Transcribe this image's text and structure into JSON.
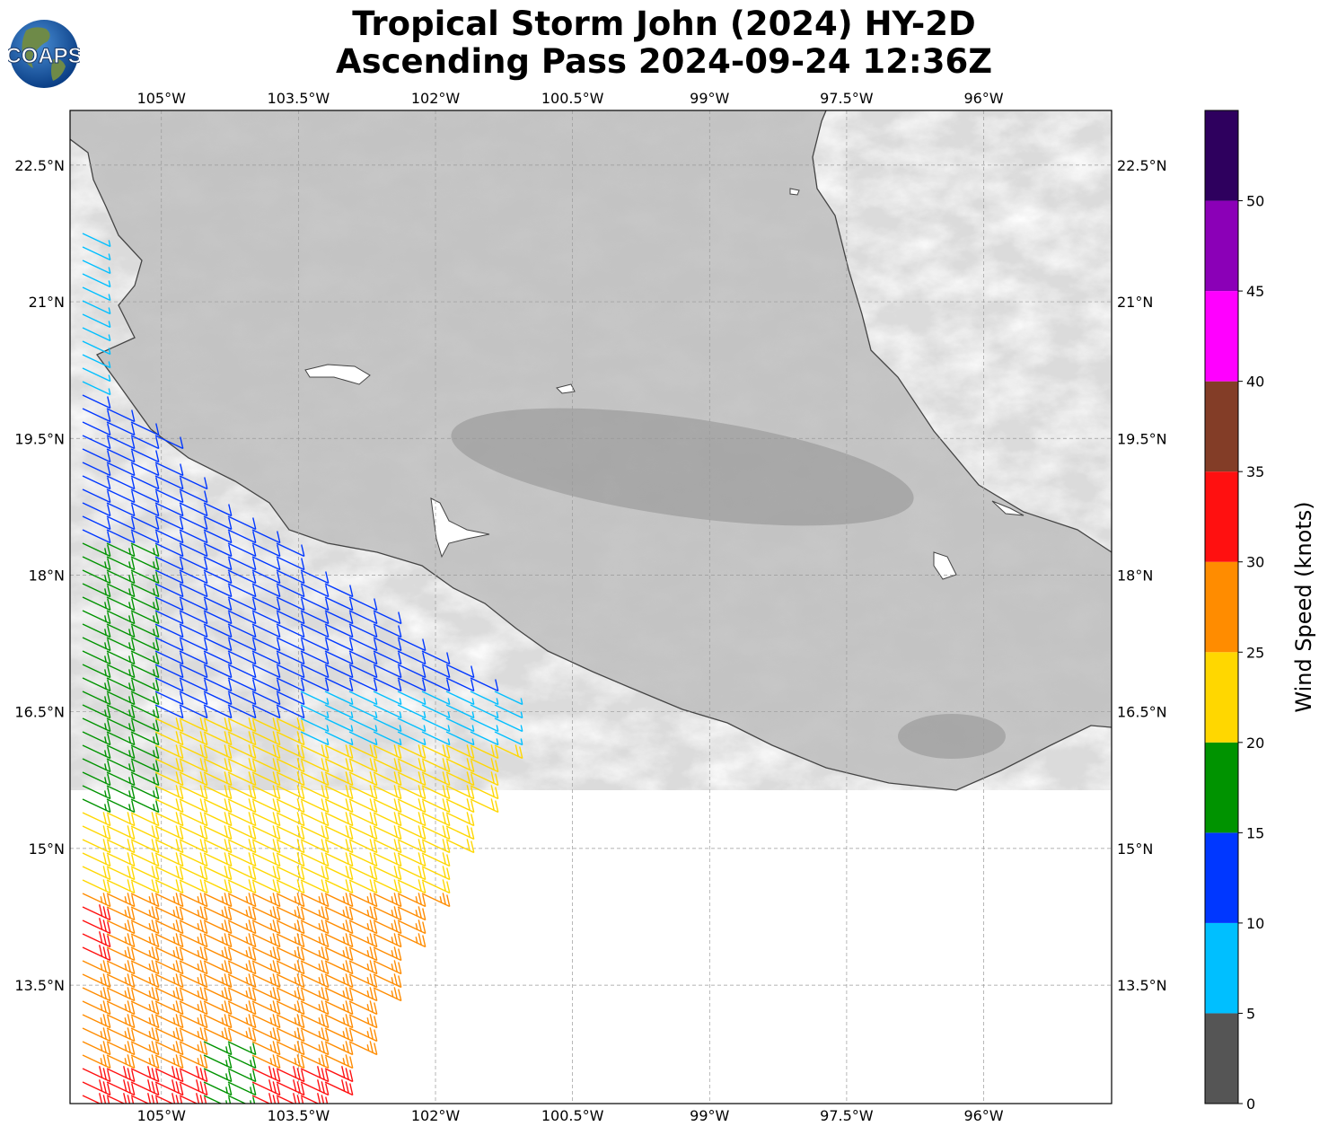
{
  "title": {
    "line1": "Tropical Storm John (2024) HY-2D",
    "line2": "Ascending Pass 2024-09-24 12:36Z"
  },
  "logo": {
    "text": "COAPS",
    "icon": "globe-logo-icon"
  },
  "map": {
    "extent": {
      "lon_min": -106.0,
      "lon_max": -94.6,
      "lat_min": 12.2,
      "lat_max": 23.1
    },
    "lon_ticks": [
      "105°W",
      "103.5°W",
      "102°W",
      "100.5°W",
      "99°W",
      "97.5°W",
      "96°W"
    ],
    "lon_tick_values": [
      -105,
      -103.5,
      -102,
      -100.5,
      -99,
      -97.5,
      -96
    ],
    "lat_ticks": [
      "22.5°N",
      "21°N",
      "19.5°N",
      "18°N",
      "16.5°N",
      "15°N",
      "13.5°N"
    ],
    "lat_tick_values": [
      22.5,
      21,
      19.5,
      18,
      16.5,
      15,
      13.5
    ],
    "grid": true,
    "land_shading": "grayscale terrain elevation",
    "barb_units": "knots"
  },
  "colorbar": {
    "label": "Wind Speed (knots)",
    "ticks": [
      "0",
      "5",
      "10",
      "15",
      "20",
      "25",
      "30",
      "35",
      "40",
      "45",
      "50"
    ],
    "bins": [
      {
        "from": 0,
        "to": 5,
        "color": "#555555"
      },
      {
        "from": 5,
        "to": 10,
        "color": "#00bfff"
      },
      {
        "from": 10,
        "to": 15,
        "color": "#0037ff"
      },
      {
        "from": 15,
        "to": 20,
        "color": "#009300"
      },
      {
        "from": 20,
        "to": 25,
        "color": "#ffd700"
      },
      {
        "from": 25,
        "to": 30,
        "color": "#ff8c00"
      },
      {
        "from": 30,
        "to": 35,
        "color": "#ff1010"
      },
      {
        "from": 35,
        "to": 40,
        "color": "#833d27"
      },
      {
        "from": 40,
        "to": 45,
        "color": "#ff00ff"
      },
      {
        "from": 45,
        "to": 50,
        "color": "#8b00b7"
      },
      {
        "from": 50,
        "to": 55,
        "color": "#2e005e"
      }
    ]
  }
}
